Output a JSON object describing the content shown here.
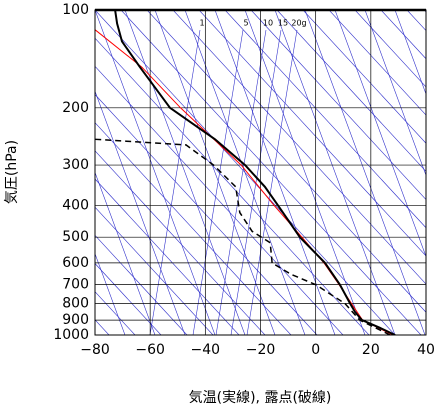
{
  "chart_data": {
    "type": "line",
    "xlabel": "気温(実線), 露点(破線)",
    "ylabel": "気圧(hPa)",
    "annotations": [
      "1",
      "5",
      "10",
      "15",
      "20g"
    ],
    "xlim": [
      -80,
      40
    ],
    "xticks": [
      {
        "value": -80,
        "label": "−80"
      },
      {
        "value": -60,
        "label": "−60"
      },
      {
        "value": -40,
        "label": "−40"
      },
      {
        "value": -20,
        "label": "−20"
      },
      0,
      20,
      40
    ],
    "ylim": [
      1000,
      100
    ],
    "ylog": true,
    "yticks": [
      100,
      200,
      300,
      400,
      500,
      600,
      700,
      800,
      900,
      1000
    ],
    "grid": true,
    "series": [
      {
        "color": "#ff0000",
        "dash": false,
        "width": 1,
        "pressure": [
          1000,
          900,
          800,
          700,
          600,
          500,
          400,
          300,
          200,
          150,
          115
        ],
        "values": [
          28,
          17,
          13,
          8.5,
          3,
          -5,
          -15,
          -27,
          -49,
          -63,
          -80
        ]
      },
      {
        "color": "#000000",
        "dash": false,
        "width": 2,
        "pressure": [
          1000,
          950,
          900,
          850,
          800,
          700,
          600,
          500,
          400,
          350,
          300,
          250,
          200,
          150,
          125,
          110,
          100
        ],
        "values": [
          28.8,
          23.3,
          16.8,
          14.3,
          12.5,
          8.8,
          3.4,
          -5.7,
          -13.6,
          -18.4,
          -25.6,
          -36.5,
          -52.8,
          -63.7,
          -70.2,
          -72,
          -72.7
        ]
      },
      {
        "color": "#000000",
        "dash": true,
        "width": 1.5,
        "pressure": [
          1000,
          900,
          800,
          700,
          650,
          600,
          520,
          480,
          420,
          350,
          300,
          260,
          250
        ],
        "values": [
          27,
          16,
          10.6,
          0,
          -9,
          -15.8,
          -16.5,
          -23,
          -27.5,
          -29,
          -37,
          -47,
          -80
        ]
      }
    ]
  }
}
